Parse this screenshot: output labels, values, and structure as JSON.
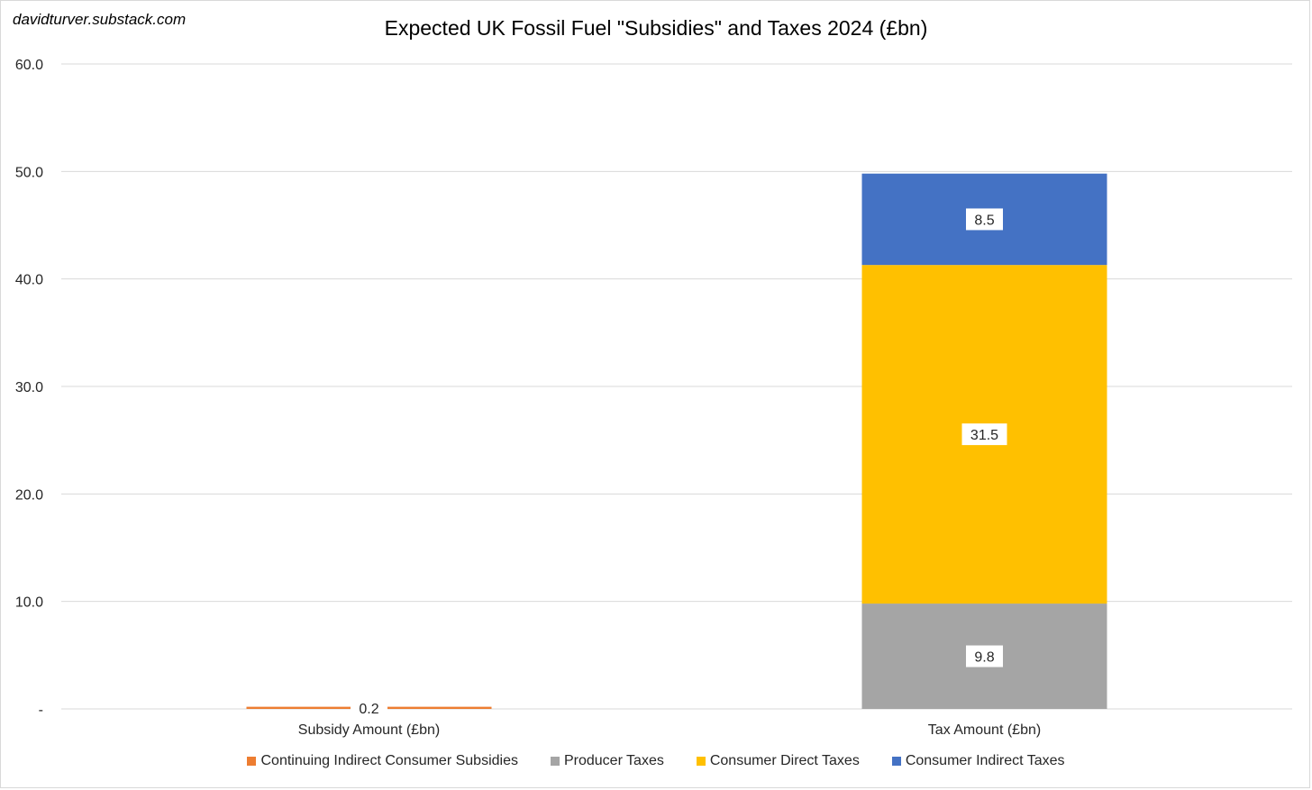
{
  "watermark": "davidturver.substack.com",
  "chart_data": {
    "type": "bar",
    "stacked": true,
    "title": "Expected UK Fossil Fuel \"Subsidies\" and Taxes 2024 (£bn)",
    "categories": [
      "Subsidy Amount (£bn)",
      "Tax Amount (£bn)"
    ],
    "series": [
      {
        "name": "Continuing Indirect Consumer Subsidies",
        "color": "#ED7D31",
        "values": [
          0.2,
          null
        ],
        "labels": [
          "0.2",
          ""
        ]
      },
      {
        "name": "Producer Taxes",
        "color": "#A5A5A5",
        "values": [
          null,
          9.8
        ],
        "labels": [
          "",
          "9.8"
        ]
      },
      {
        "name": "Consumer Direct Taxes",
        "color": "#FFC000",
        "values": [
          null,
          31.5
        ],
        "labels": [
          "",
          "31.5"
        ]
      },
      {
        "name": "Consumer Indirect Taxes",
        "color": "#4472C4",
        "values": [
          null,
          8.5
        ],
        "labels": [
          "",
          "8.5"
        ]
      }
    ],
    "ylim": [
      0,
      60
    ],
    "yticks": [
      0,
      10,
      20,
      30,
      40,
      50,
      60
    ],
    "ytick_labels": [
      "-",
      "10.0",
      "20.0",
      "30.0",
      "40.0",
      "50.0",
      "60.0"
    ],
    "grid": true,
    "legend_position": "bottom"
  }
}
